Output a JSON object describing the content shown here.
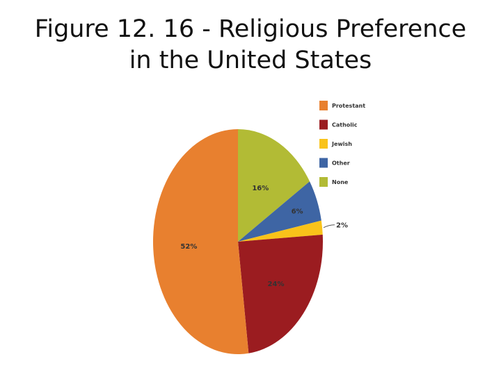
{
  "header": {
    "title_line1": "Figure 12. 16 - Religious Preference",
    "title_line2": "in the United States"
  },
  "chart_data": {
    "type": "pie",
    "title": "Figure 12. 16 - Religious Preference in the United States",
    "legend_position": "top-right",
    "slices": [
      {
        "label": "None",
        "value": 16,
        "display": "16%",
        "color": "#b2bb35"
      },
      {
        "label": "Other",
        "value": 6,
        "display": "6%",
        "color": "#3e65a4"
      },
      {
        "label": "Jewish",
        "value": 2,
        "display": "2%",
        "color": "#f9c31a"
      },
      {
        "label": "Catholic",
        "value": 24,
        "display": "24%",
        "color": "#9b1c20"
      },
      {
        "label": "Protestant",
        "value": 52,
        "display": "52%",
        "color": "#e8802f"
      }
    ],
    "legend": [
      "Protestant",
      "Catholic",
      "Jewish",
      "Other",
      "None"
    ]
  }
}
